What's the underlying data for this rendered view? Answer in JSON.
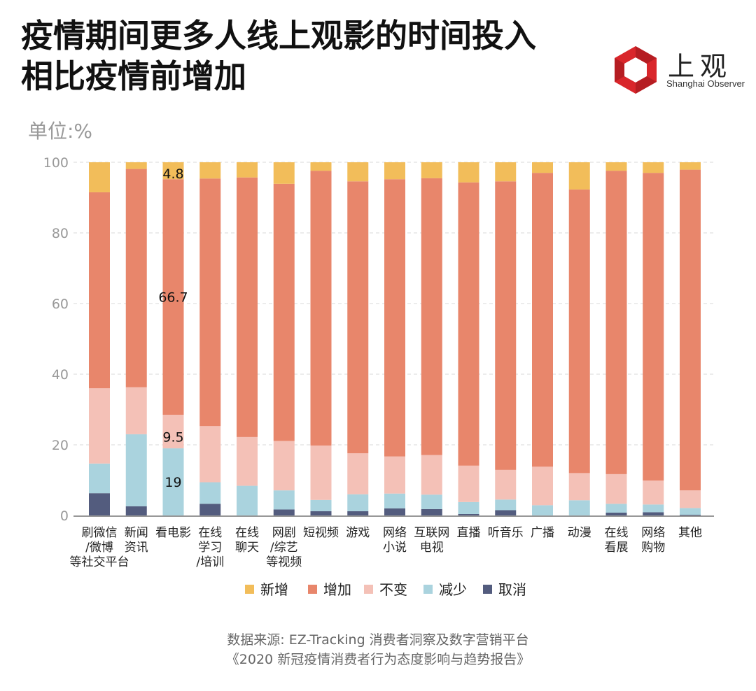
{
  "title": {
    "line1": "疫情期间更多人线上观影的时间投入",
    "line2": "相比疫情前增加"
  },
  "logo": {
    "name": "上观",
    "sub": "Shanghai Observer"
  },
  "unit_label": "单位:%",
  "source": {
    "line1": "数据来源: EZ-Tracking 消费者洞察及数字营销平台",
    "line2": "《2020 新冠疫情消费者行为态度影响与趋势报告》"
  },
  "colors": {
    "新增": "#f2bd5a",
    "增加": "#e8866b",
    "不变": "#f4c1b7",
    "减少": "#aad3de",
    "取消": "#535c7e"
  },
  "chart_data": {
    "type": "bar",
    "stacked": true,
    "ylim": [
      0,
      100
    ],
    "yticks": [
      0,
      20,
      40,
      60,
      80,
      100
    ],
    "grid": true,
    "legend_position": "bottom",
    "categories": [
      [
        "刷微信",
        "/微博",
        "等社交平台"
      ],
      [
        "新闻",
        "资讯"
      ],
      [
        "看电影"
      ],
      [
        "在线",
        "学习",
        "/培训"
      ],
      [
        "在线",
        "聊天"
      ],
      [
        "网剧",
        "/综艺",
        "等视频"
      ],
      [
        "短视频"
      ],
      [
        "游戏"
      ],
      [
        "网络",
        "小说"
      ],
      [
        "互联网",
        "电视"
      ],
      [
        "直播"
      ],
      [
        "听音乐"
      ],
      [
        "广播"
      ],
      [
        "动漫"
      ],
      [
        "在线",
        "看展"
      ],
      [
        "网络",
        "购物"
      ],
      [
        "其他"
      ]
    ],
    "series": [
      {
        "name": "取消",
        "values": [
          6.3,
          2.6,
          0,
          3.3,
          0,
          1.7,
          1.2,
          1.2,
          2.0,
          1.8,
          0.4,
          1.5,
          0,
          0,
          0.8,
          0.9,
          0.2
        ]
      },
      {
        "name": "减少",
        "values": [
          8.4,
          20.4,
          19,
          6.1,
          8.4,
          5.4,
          3.2,
          4.8,
          4.2,
          4.1,
          3.4,
          3.0,
          2.9,
          4.3,
          2.5,
          2.2,
          1.9
        ]
      },
      {
        "name": "不变",
        "values": [
          21.3,
          13.3,
          9.5,
          15.9,
          13.8,
          14.0,
          15.4,
          11.6,
          10.5,
          11.2,
          10.3,
          8.4,
          10.9,
          7.7,
          8.4,
          6.8,
          5.0
        ]
      },
      {
        "name": "增加",
        "values": [
          55.5,
          61.8,
          66.7,
          70.1,
          73.5,
          72.8,
          77.8,
          77.0,
          78.5,
          78.4,
          80.2,
          81.7,
          83.2,
          80.3,
          85.9,
          87.1,
          90.8
        ]
      },
      {
        "name": "新增",
        "values": [
          8.5,
          1.9,
          4.8,
          4.6,
          4.3,
          6.1,
          2.4,
          5.4,
          4.8,
          4.5,
          5.7,
          5.4,
          3.0,
          7.7,
          2.4,
          3.0,
          2.1
        ]
      }
    ],
    "data_labels": [
      {
        "category_index": 2,
        "series": "新增",
        "text": "4.8"
      },
      {
        "category_index": 2,
        "series": "增加",
        "text": "66.7"
      },
      {
        "category_index": 2,
        "series": "不变",
        "text": "9.5"
      },
      {
        "category_index": 2,
        "series": "减少",
        "text": "19"
      }
    ],
    "legend": [
      "新增",
      "增加",
      "不变",
      "减少",
      "取消"
    ]
  }
}
